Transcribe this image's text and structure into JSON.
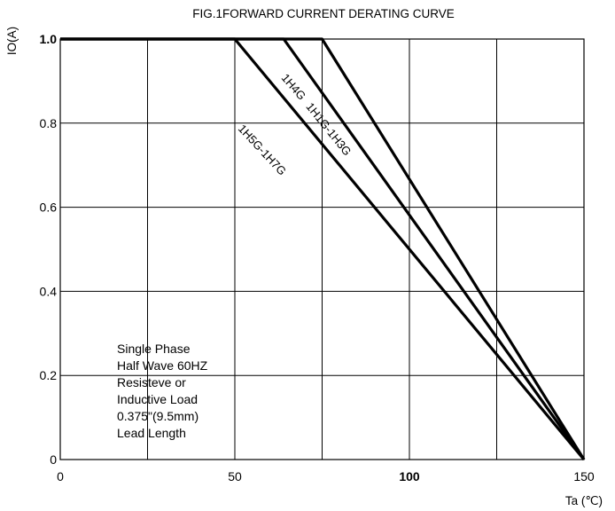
{
  "chart_data": {
    "type": "line",
    "title": "FIG.1FORWARD CURRENT  DERATING CURVE",
    "xlabel": "Ta (℃)",
    "ylabel": "IO(A)",
    "xlim": [
      0,
      150
    ],
    "ylim": [
      0,
      1.0
    ],
    "grid": true,
    "x_ticks": [
      {
        "value": 0,
        "label": "0"
      },
      {
        "value": 50,
        "label": "50"
      },
      {
        "value": 100,
        "label": "100"
      },
      {
        "value": 150,
        "label": "150"
      }
    ],
    "y_ticks": [
      {
        "value": 0,
        "label": "0"
      },
      {
        "value": 0.2,
        "label": "0.2"
      },
      {
        "value": 0.4,
        "label": "0.4"
      },
      {
        "value": 0.6,
        "label": "0.6"
      },
      {
        "value": 0.8,
        "label": "0.8"
      },
      {
        "value": 1.0,
        "label": "1.0"
      }
    ],
    "x_grid": [
      0,
      25,
      50,
      75,
      100,
      125,
      150
    ],
    "y_grid": [
      0,
      0.2,
      0.4,
      0.6,
      0.8,
      1.0
    ],
    "series": [
      {
        "name": "1H5G-1H7G",
        "points": [
          [
            0,
            1.0
          ],
          [
            50,
            1.0
          ],
          [
            150,
            0
          ]
        ]
      },
      {
        "name": "1H4G",
        "points": [
          [
            0,
            1.0
          ],
          [
            64,
            1.0
          ],
          [
            150,
            0
          ]
        ]
      },
      {
        "name": "1H1G-1H3G",
        "points": [
          [
            0,
            1.0
          ],
          [
            75,
            1.0
          ],
          [
            150,
            0
          ]
        ]
      }
    ],
    "series_labels": [
      {
        "text": "1H5G-1H7G",
        "x": 57,
        "y": 0.73,
        "angle": 47
      },
      {
        "text": "1H4G",
        "x": 66,
        "y": 0.88,
        "angle": 49
      },
      {
        "text": "1H1G-1H3G",
        "x": 76,
        "y": 0.78,
        "angle": 51
      }
    ],
    "annotation": {
      "lines": [
        "Single Phase",
        "Half Wave 60HZ",
        "Resisteve or",
        "Inductive Load",
        "0.375\"(9.5mm)",
        "Lead Length"
      ]
    }
  }
}
